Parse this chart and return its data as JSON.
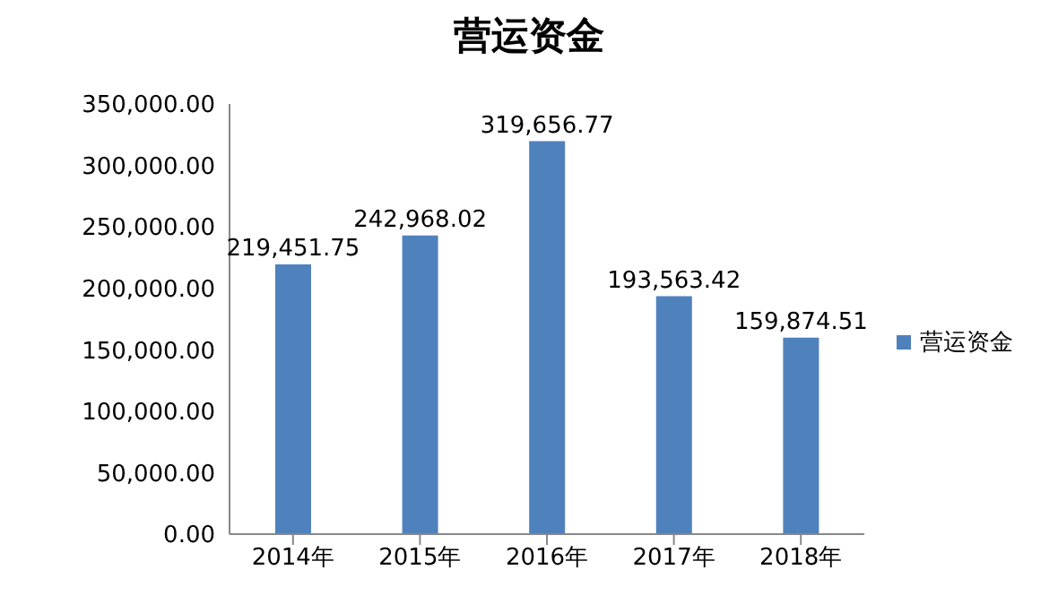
{
  "chart_data": {
    "type": "bar",
    "title": "营运资金",
    "categories": [
      "2014年",
      "2015年",
      "2016年",
      "2017年",
      "2018年"
    ],
    "series": [
      {
        "name": "营运资金",
        "color": "#4f81bd",
        "values": [
          219451.75,
          242968.02,
          319656.77,
          193563.42,
          159874.51
        ],
        "value_labels": [
          "219,451.75",
          "242,968.02",
          "319,656.77",
          "193,563.42",
          "159,874.51"
        ]
      }
    ],
    "ylim": [
      0,
      350000
    ],
    "yticks": [
      {
        "value": 0,
        "label": "0.00"
      },
      {
        "value": 50000,
        "label": "50,000.00"
      },
      {
        "value": 100000,
        "label": "100,000.00"
      },
      {
        "value": 150000,
        "label": "150,000.00"
      },
      {
        "value": 200000,
        "label": "200,000.00"
      },
      {
        "value": 250000,
        "label": "250,000.00"
      },
      {
        "value": 300000,
        "label": "300,000.00"
      },
      {
        "value": 350000,
        "label": "350,000.00"
      }
    ],
    "grid": false,
    "legend": "right"
  }
}
